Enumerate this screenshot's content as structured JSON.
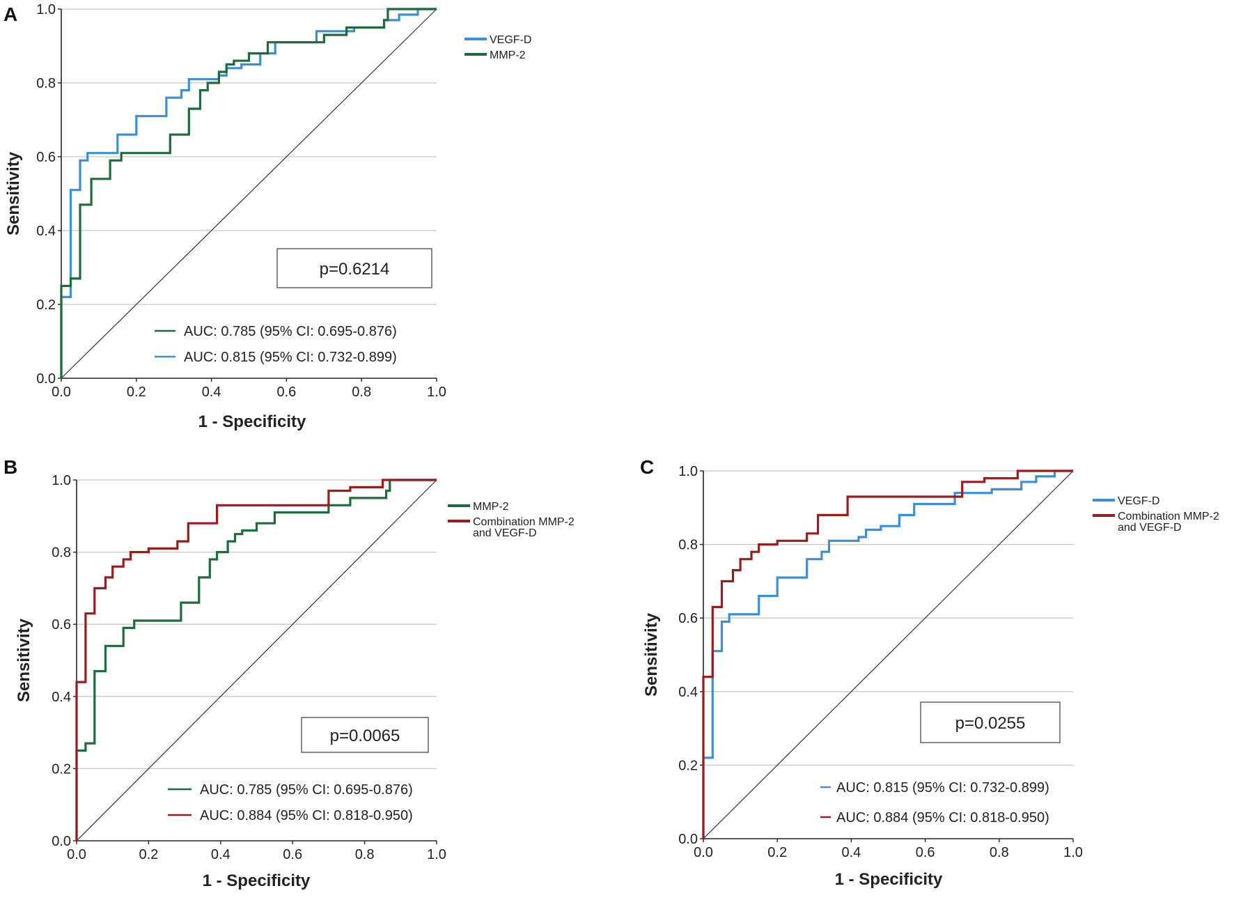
{
  "charts": [
    {
      "letter": "A",
      "type": "line",
      "xlabel": "1 - Specificity",
      "ylabel": "Sensitivity",
      "xlim": [
        0,
        1
      ],
      "ylim": [
        0,
        1
      ],
      "xticks": [
        "0.0",
        "0.2",
        "0.4",
        "0.6",
        "0.8",
        "1.0"
      ],
      "yticks": [
        "0.0",
        "0.2",
        "0.4",
        "0.6",
        "0.8",
        "1.0"
      ],
      "legend": [
        {
          "label": "VEGF-D",
          "color": "#3a8fd8"
        },
        {
          "label": "MMP-2",
          "color": "#1f6b3a"
        }
      ],
      "p_value": "p=0.6214",
      "auc_labels": [
        {
          "text": "AUC: 0.785 (95% CI: 0.695-0.876)",
          "color": "#1f6b3a"
        },
        {
          "text": "AUC: 0.815 (95% CI: 0.732-0.899)",
          "color": "#3a8fd8"
        }
      ],
      "series": [
        {
          "name": "VEGF-D",
          "color": "#3a8fd8",
          "points": [
            [
              0,
              0
            ],
            [
              0,
              0.22
            ],
            [
              0.025,
              0.22
            ],
            [
              0.025,
              0.51
            ],
            [
              0.05,
              0.51
            ],
            [
              0.05,
              0.59
            ],
            [
              0.07,
              0.59
            ],
            [
              0.07,
              0.61
            ],
            [
              0.15,
              0.61
            ],
            [
              0.15,
              0.66
            ],
            [
              0.2,
              0.66
            ],
            [
              0.2,
              0.71
            ],
            [
              0.28,
              0.71
            ],
            [
              0.28,
              0.76
            ],
            [
              0.32,
              0.76
            ],
            [
              0.32,
              0.78
            ],
            [
              0.34,
              0.78
            ],
            [
              0.34,
              0.81
            ],
            [
              0.42,
              0.81
            ],
            [
              0.42,
              0.82
            ],
            [
              0.44,
              0.82
            ],
            [
              0.44,
              0.84
            ],
            [
              0.48,
              0.84
            ],
            [
              0.48,
              0.85
            ],
            [
              0.53,
              0.85
            ],
            [
              0.53,
              0.88
            ],
            [
              0.57,
              0.88
            ],
            [
              0.57,
              0.91
            ],
            [
              0.68,
              0.91
            ],
            [
              0.68,
              0.94
            ],
            [
              0.78,
              0.94
            ],
            [
              0.78,
              0.95
            ],
            [
              0.86,
              0.95
            ],
            [
              0.86,
              0.97
            ],
            [
              0.9,
              0.97
            ],
            [
              0.9,
              0.985
            ],
            [
              0.95,
              0.985
            ],
            [
              0.95,
              1
            ],
            [
              1,
              1
            ]
          ]
        },
        {
          "name": "MMP-2",
          "color": "#1f6b3a",
          "points": [
            [
              0,
              0
            ],
            [
              0,
              0.25
            ],
            [
              0.025,
              0.25
            ],
            [
              0.025,
              0.27
            ],
            [
              0.05,
              0.27
            ],
            [
              0.05,
              0.47
            ],
            [
              0.08,
              0.47
            ],
            [
              0.08,
              0.54
            ],
            [
              0.13,
              0.54
            ],
            [
              0.13,
              0.59
            ],
            [
              0.16,
              0.59
            ],
            [
              0.16,
              0.61
            ],
            [
              0.29,
              0.61
            ],
            [
              0.29,
              0.66
            ],
            [
              0.34,
              0.66
            ],
            [
              0.34,
              0.73
            ],
            [
              0.37,
              0.73
            ],
            [
              0.37,
              0.78
            ],
            [
              0.39,
              0.78
            ],
            [
              0.39,
              0.8
            ],
            [
              0.42,
              0.8
            ],
            [
              0.42,
              0.83
            ],
            [
              0.44,
              0.83
            ],
            [
              0.44,
              0.85
            ],
            [
              0.46,
              0.85
            ],
            [
              0.46,
              0.86
            ],
            [
              0.5,
              0.86
            ],
            [
              0.5,
              0.88
            ],
            [
              0.55,
              0.88
            ],
            [
              0.55,
              0.91
            ],
            [
              0.7,
              0.91
            ],
            [
              0.7,
              0.93
            ],
            [
              0.76,
              0.93
            ],
            [
              0.76,
              0.95
            ],
            [
              0.86,
              0.95
            ],
            [
              0.86,
              0.97
            ],
            [
              0.87,
              0.97
            ],
            [
              0.87,
              1
            ],
            [
              1,
              1
            ]
          ]
        }
      ]
    },
    {
      "letter": "B",
      "type": "line",
      "xlabel": "1 - Specificity",
      "ylabel": "Sensitivity",
      "xlim": [
        0,
        1
      ],
      "ylim": [
        0,
        1
      ],
      "xticks": [
        "0.0",
        "0.2",
        "0.4",
        "0.6",
        "0.8",
        "1.0"
      ],
      "yticks": [
        "0.0",
        "0.2",
        "0.4",
        "0.6",
        "0.8",
        "1.0"
      ],
      "legend": [
        {
          "label": "MMP-2",
          "color": "#1f6b3a"
        },
        {
          "label": "Combination MMP-2",
          "label2": "and VEGF-D",
          "color": "#9b1c1c"
        }
      ],
      "p_value": "p=0.0065",
      "auc_labels": [
        {
          "text": "AUC: 0.785 (95% CI: 0.695-0.876)",
          "color": "#1f6b3a"
        },
        {
          "text": "AUC: 0.884 (95% CI: 0.818-0.950)",
          "color": "#9b1c1c"
        }
      ],
      "series": [
        {
          "name": "MMP-2",
          "color": "#1f6b3a",
          "points": [
            [
              0,
              0
            ],
            [
              0,
              0.25
            ],
            [
              0.025,
              0.25
            ],
            [
              0.025,
              0.27
            ],
            [
              0.05,
              0.27
            ],
            [
              0.05,
              0.47
            ],
            [
              0.08,
              0.47
            ],
            [
              0.08,
              0.54
            ],
            [
              0.13,
              0.54
            ],
            [
              0.13,
              0.59
            ],
            [
              0.16,
              0.59
            ],
            [
              0.16,
              0.61
            ],
            [
              0.29,
              0.61
            ],
            [
              0.29,
              0.66
            ],
            [
              0.34,
              0.66
            ],
            [
              0.34,
              0.73
            ],
            [
              0.37,
              0.73
            ],
            [
              0.37,
              0.78
            ],
            [
              0.39,
              0.78
            ],
            [
              0.39,
              0.8
            ],
            [
              0.42,
              0.8
            ],
            [
              0.42,
              0.83
            ],
            [
              0.44,
              0.83
            ],
            [
              0.44,
              0.85
            ],
            [
              0.46,
              0.85
            ],
            [
              0.46,
              0.86
            ],
            [
              0.5,
              0.86
            ],
            [
              0.5,
              0.88
            ],
            [
              0.55,
              0.88
            ],
            [
              0.55,
              0.91
            ],
            [
              0.7,
              0.91
            ],
            [
              0.7,
              0.93
            ],
            [
              0.76,
              0.93
            ],
            [
              0.76,
              0.95
            ],
            [
              0.86,
              0.95
            ],
            [
              0.86,
              0.97
            ],
            [
              0.87,
              0.97
            ],
            [
              0.87,
              1
            ],
            [
              1,
              1
            ]
          ]
        },
        {
          "name": "Combination MMP-2 and VEGF-D",
          "color": "#9b1c1c",
          "points": [
            [
              0,
              0
            ],
            [
              0,
              0.44
            ],
            [
              0.025,
              0.44
            ],
            [
              0.025,
              0.63
            ],
            [
              0.05,
              0.63
            ],
            [
              0.05,
              0.7
            ],
            [
              0.08,
              0.7
            ],
            [
              0.08,
              0.73
            ],
            [
              0.1,
              0.73
            ],
            [
              0.1,
              0.76
            ],
            [
              0.13,
              0.76
            ],
            [
              0.13,
              0.78
            ],
            [
              0.15,
              0.78
            ],
            [
              0.15,
              0.8
            ],
            [
              0.2,
              0.8
            ],
            [
              0.2,
              0.81
            ],
            [
              0.28,
              0.81
            ],
            [
              0.28,
              0.83
            ],
            [
              0.31,
              0.83
            ],
            [
              0.31,
              0.88
            ],
            [
              0.39,
              0.88
            ],
            [
              0.39,
              0.93
            ],
            [
              0.7,
              0.93
            ],
            [
              0.7,
              0.97
            ],
            [
              0.76,
              0.97
            ],
            [
              0.76,
              0.98
            ],
            [
              0.85,
              0.98
            ],
            [
              0.85,
              1
            ],
            [
              1,
              1
            ]
          ]
        }
      ]
    },
    {
      "letter": "C",
      "type": "line",
      "xlabel": "1 - Specificity",
      "ylabel": "Sensitivity",
      "xlim": [
        0,
        1
      ],
      "ylim": [
        0,
        1
      ],
      "xticks": [
        "0.0",
        "0.2",
        "0.4",
        "0.6",
        "0.8",
        "1.0"
      ],
      "yticks": [
        "0.0",
        "0.2",
        "0.4",
        "0.6",
        "0.8",
        "1.0"
      ],
      "legend": [
        {
          "label": "VEGF-D",
          "color": "#3a8fd8"
        },
        {
          "label": "Combination MMP-2",
          "label2": "and VEGF-D",
          "color": "#9b1c1c"
        }
      ],
      "p_value": "p=0.0255",
      "auc_labels": [
        {
          "text": "AUC: 0.815 (95% CI: 0.732-0.899)",
          "color": "#3a8fd8"
        },
        {
          "text": "AUC: 0.884 (95% CI: 0.818-0.950)",
          "color": "#9b1c1c"
        }
      ],
      "series": [
        {
          "name": "VEGF-D",
          "color": "#3a8fd8",
          "points": [
            [
              0,
              0
            ],
            [
              0,
              0.22
            ],
            [
              0.025,
              0.22
            ],
            [
              0.025,
              0.51
            ],
            [
              0.05,
              0.51
            ],
            [
              0.05,
              0.59
            ],
            [
              0.07,
              0.59
            ],
            [
              0.07,
              0.61
            ],
            [
              0.15,
              0.61
            ],
            [
              0.15,
              0.66
            ],
            [
              0.2,
              0.66
            ],
            [
              0.2,
              0.71
            ],
            [
              0.28,
              0.71
            ],
            [
              0.28,
              0.76
            ],
            [
              0.32,
              0.76
            ],
            [
              0.32,
              0.78
            ],
            [
              0.34,
              0.78
            ],
            [
              0.34,
              0.81
            ],
            [
              0.42,
              0.81
            ],
            [
              0.42,
              0.82
            ],
            [
              0.44,
              0.82
            ],
            [
              0.44,
              0.84
            ],
            [
              0.48,
              0.84
            ],
            [
              0.48,
              0.85
            ],
            [
              0.53,
              0.85
            ],
            [
              0.53,
              0.88
            ],
            [
              0.57,
              0.88
            ],
            [
              0.57,
              0.91
            ],
            [
              0.68,
              0.91
            ],
            [
              0.68,
              0.94
            ],
            [
              0.78,
              0.94
            ],
            [
              0.78,
              0.95
            ],
            [
              0.86,
              0.95
            ],
            [
              0.86,
              0.97
            ],
            [
              0.9,
              0.97
            ],
            [
              0.9,
              0.985
            ],
            [
              0.95,
              0.985
            ],
            [
              0.95,
              1
            ],
            [
              1,
              1
            ]
          ]
        },
        {
          "name": "Combination MMP-2 and VEGF-D",
          "color": "#9b1c1c",
          "points": [
            [
              0,
              0
            ],
            [
              0,
              0.44
            ],
            [
              0.025,
              0.44
            ],
            [
              0.025,
              0.63
            ],
            [
              0.05,
              0.63
            ],
            [
              0.05,
              0.7
            ],
            [
              0.08,
              0.7
            ],
            [
              0.08,
              0.73
            ],
            [
              0.1,
              0.73
            ],
            [
              0.1,
              0.76
            ],
            [
              0.13,
              0.76
            ],
            [
              0.13,
              0.78
            ],
            [
              0.15,
              0.78
            ],
            [
              0.15,
              0.8
            ],
            [
              0.2,
              0.8
            ],
            [
              0.2,
              0.81
            ],
            [
              0.28,
              0.81
            ],
            [
              0.28,
              0.83
            ],
            [
              0.31,
              0.83
            ],
            [
              0.31,
              0.88
            ],
            [
              0.39,
              0.88
            ],
            [
              0.39,
              0.93
            ],
            [
              0.7,
              0.93
            ],
            [
              0.7,
              0.97
            ],
            [
              0.76,
              0.97
            ],
            [
              0.76,
              0.98
            ],
            [
              0.85,
              0.98
            ],
            [
              0.85,
              1
            ],
            [
              1,
              1
            ]
          ]
        }
      ]
    }
  ]
}
